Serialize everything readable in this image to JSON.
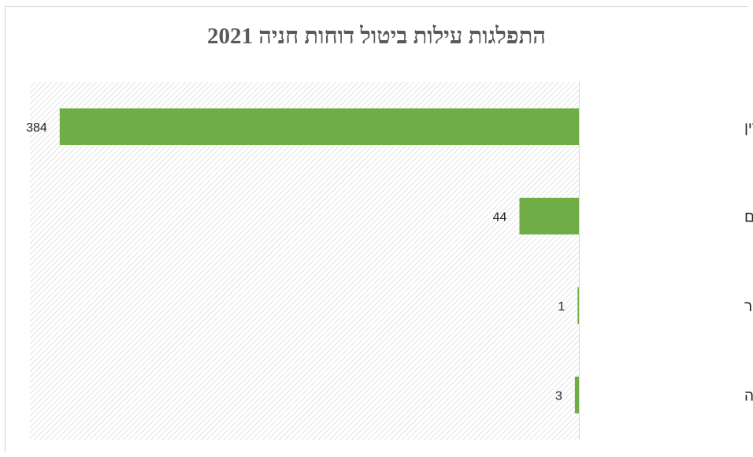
{
  "chart_data": {
    "type": "bar",
    "orientation": "horizontal",
    "title": "התפלגות עילות ביטול דוחות חניה 2021",
    "categories": [
      "לפני משורת הדין",
      "ביטול מטעמים טכנים",
      "אין ענין לציבור",
      "לא נעברה עבירה"
    ],
    "values": [
      384,
      44,
      1,
      3
    ],
    "xlabel": "",
    "ylabel": "",
    "xlim": [
      0,
      406
    ],
    "grid": false,
    "legend": "none",
    "bar_color": "#70ad47",
    "value_labels": [
      "384",
      "44",
      "1",
      "3"
    ]
  }
}
